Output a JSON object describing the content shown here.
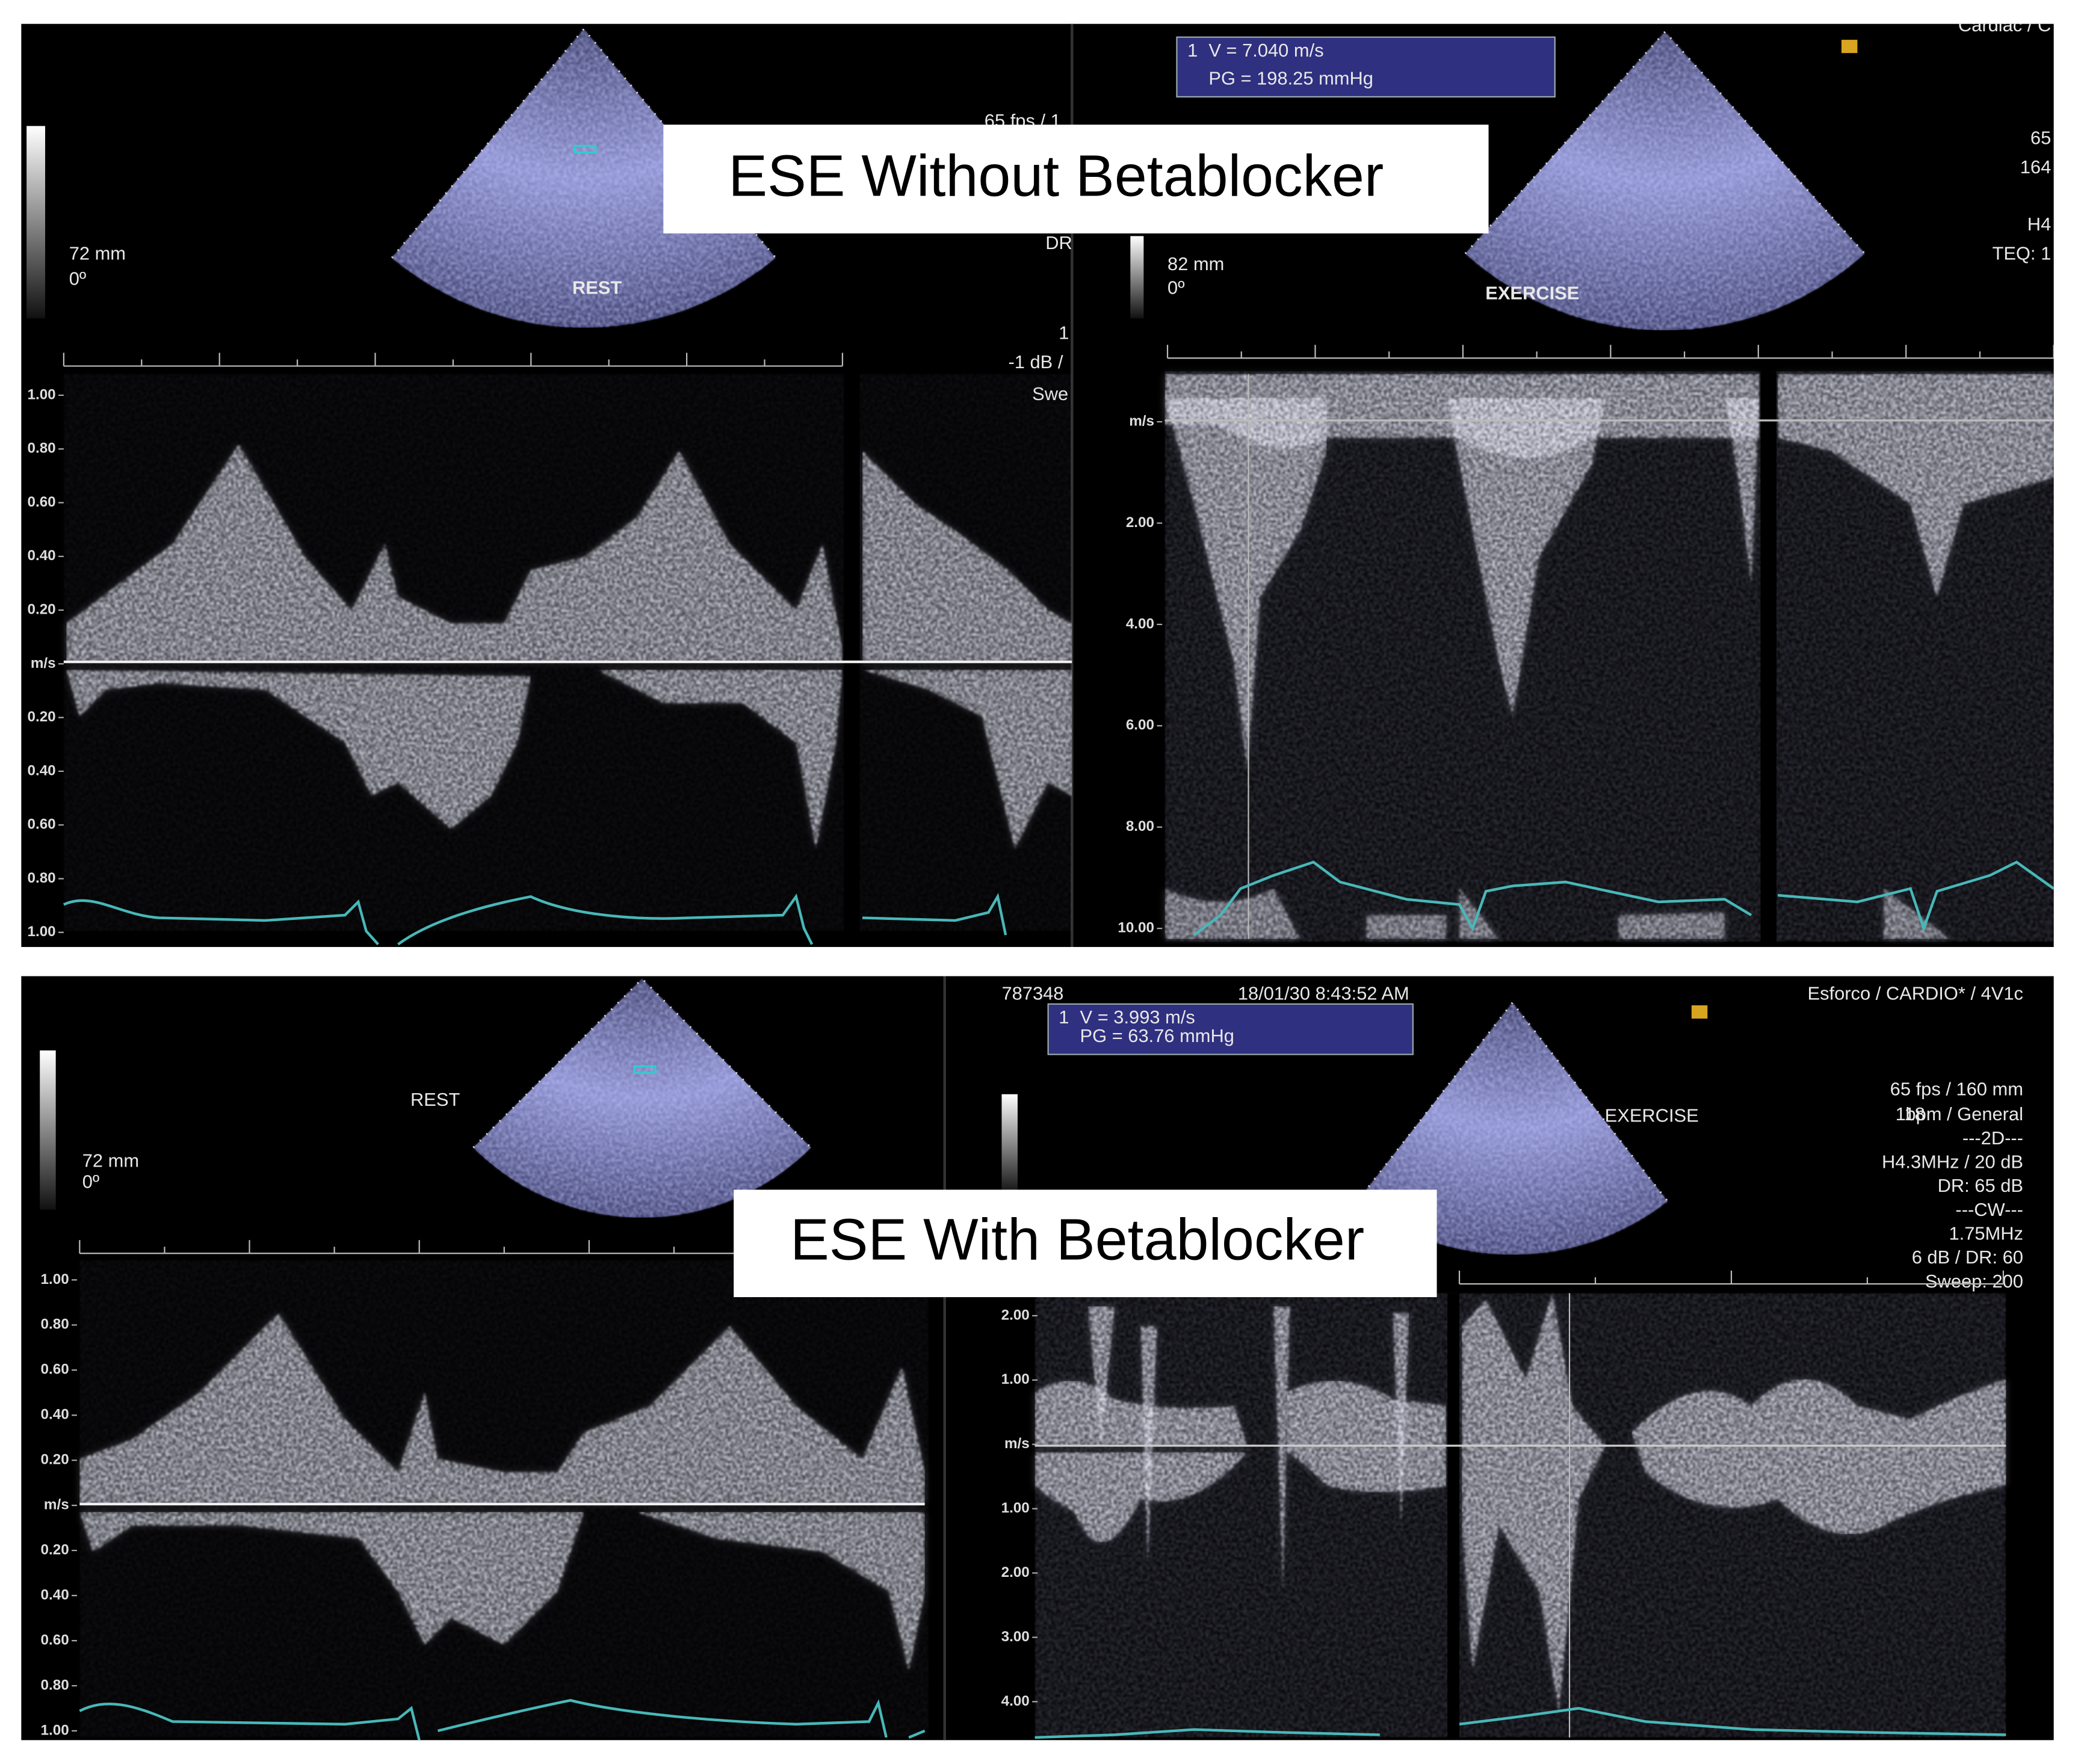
{
  "panels": [
    {
      "title": "ESE Without Betablocker",
      "rest": {
        "label": "REST",
        "depth": "72 mm",
        "angle": "0º",
        "axis_labels": [
          "1.00",
          "0.80",
          "0.60",
          "0.40",
          "0.20",
          "m/s",
          "0.20",
          "0.40",
          "0.60",
          "0.80",
          "1.00"
        ],
        "side_text": [
          "65 fps / 1",
          "DR",
          "1",
          "-1 dB /",
          "Swe"
        ]
      },
      "exercise": {
        "label": "EXERCISE",
        "depth": "82 mm",
        "angle": "0º",
        "header": [
          "Cardiac / C"
        ],
        "measurement": {
          "index": "1",
          "velocity": "V = 7.040 m/s",
          "gradient": "PG = 198.25 mmHg"
        },
        "axis_labels": [
          "m/s",
          "2.00",
          "4.00",
          "6.00",
          "8.00",
          "10.00"
        ],
        "side_text": [
          "65",
          "164",
          "H4",
          "TEQ: 1"
        ]
      }
    },
    {
      "title": "ESE With Betablocker",
      "rest": {
        "label": "REST",
        "depth": "72 mm",
        "angle": "0º",
        "axis_labels": [
          "1.00",
          "0.80",
          "0.60",
          "0.40",
          "0.20",
          "m/s",
          "0.20",
          "0.40",
          "0.60",
          "0.80",
          "1.00"
        ]
      },
      "exercise": {
        "label": "EXERCISE",
        "header": [
          "787348",
          "18/01/30 8:43:52 AM",
          "Esforco / CARDIO* / 4V1c"
        ],
        "measurement": {
          "index": "1",
          "velocity": "V = 3.993 m/s",
          "gradient": "PG = 63.76 mmHg"
        },
        "axis_labels": [
          "2.00",
          "1.00",
          "m/s",
          "1.00",
          "2.00",
          "3.00",
          "4.00"
        ],
        "heart_rate": "118",
        "side_text": [
          "65 fps / 160 mm",
          "bpm / General",
          "---2D---",
          "H4.3MHz / 20 dB",
          "DR: 65 dB",
          "---CW---",
          "1.75MHz",
          "6 dB / DR: 60",
          "Sweep: 200"
        ]
      }
    }
  ]
}
